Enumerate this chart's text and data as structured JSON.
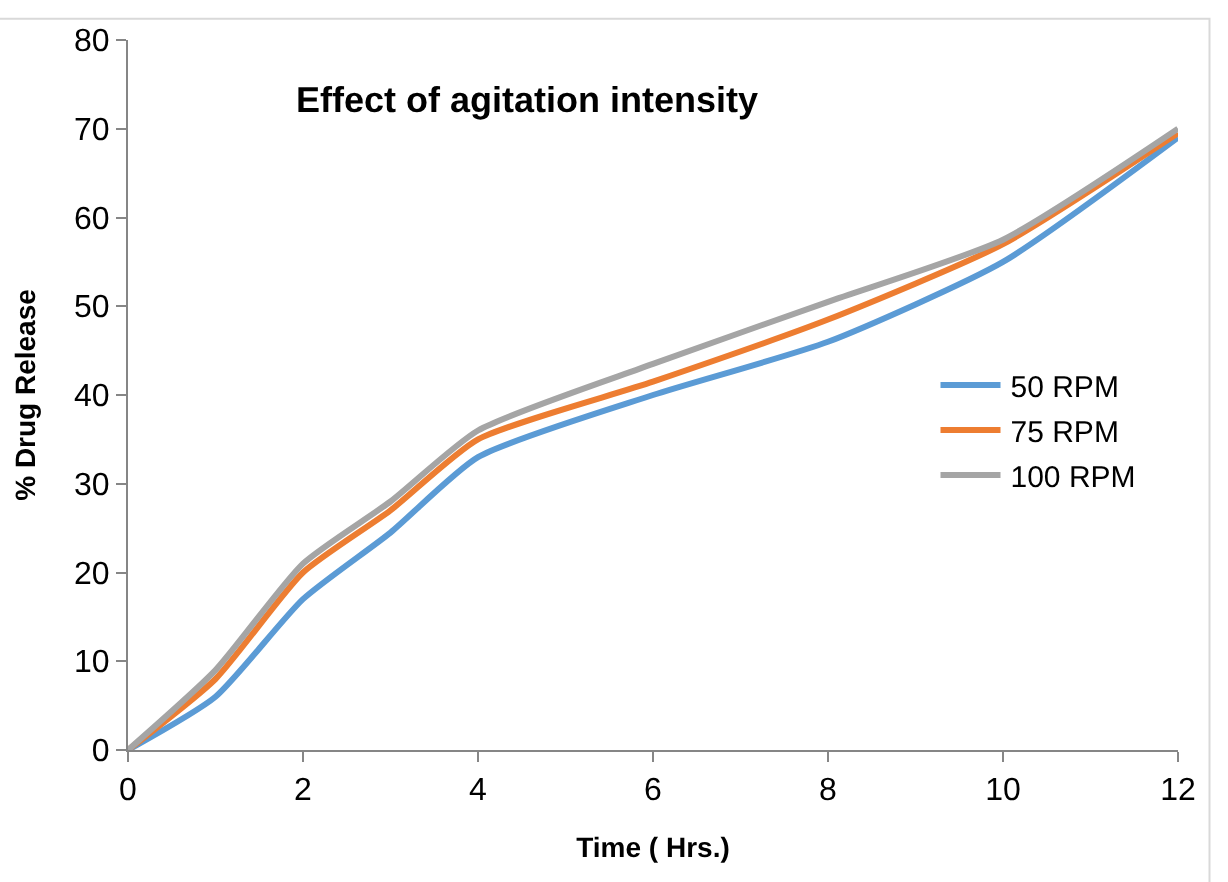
{
  "chart_data": {
    "type": "line",
    "title": "Effect of agitation intensity",
    "xlabel": "Time ( Hrs.)",
    "ylabel": "% Drug Release",
    "x": [
      0,
      1,
      2,
      3,
      4,
      6,
      8,
      10,
      12
    ],
    "series": [
      {
        "name": "50 RPM",
        "color": "#5b9bd5",
        "values": [
          0,
          6,
          17,
          24.5,
          33,
          40,
          46,
          55,
          69
        ]
      },
      {
        "name": "75 RPM",
        "color": "#ed7d31",
        "values": [
          0,
          8,
          20,
          27,
          35,
          41.5,
          48.5,
          57,
          69.5
        ]
      },
      {
        "name": "100 RPM",
        "color": "#a5a5a5",
        "values": [
          0,
          9,
          21,
          28,
          36,
          43.5,
          50.5,
          57.5,
          70
        ]
      }
    ],
    "xlim": [
      0,
      12
    ],
    "xticks": [
      0,
      2,
      4,
      6,
      8,
      10,
      12
    ],
    "ylim": [
      0,
      80
    ],
    "yticks": [
      0,
      10,
      20,
      30,
      40,
      50,
      60,
      70,
      80
    ],
    "legend": "right",
    "marker": "none",
    "line_style": "solid"
  }
}
